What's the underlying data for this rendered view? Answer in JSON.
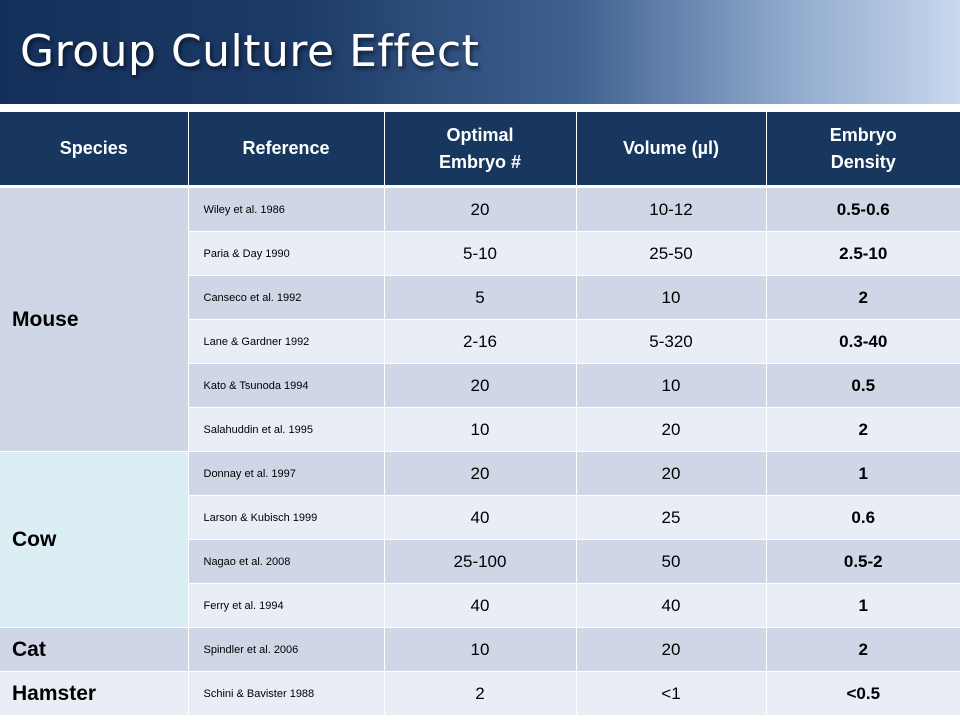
{
  "title": "Group Culture Effect",
  "table": {
    "headers": {
      "species": "Species",
      "reference": "Reference",
      "optimal_line1": "Optimal",
      "optimal_line2": "Embryo #",
      "volume": "Volume (µl)",
      "density_line1": "Embryo",
      "density_line2": "Density"
    },
    "groups": [
      {
        "species": "Mouse",
        "rows": [
          {
            "reference": "Wiley et al. 1986",
            "optimal": "20",
            "volume": "10-12",
            "density": "0.5-0.6"
          },
          {
            "reference": "Paria & Day 1990",
            "optimal": "5-10",
            "volume": "25-50",
            "density": "2.5-10"
          },
          {
            "reference": "Canseco et al. 1992",
            "optimal": "5",
            "volume": "10",
            "density": "2"
          },
          {
            "reference": "Lane & Gardner 1992",
            "optimal": "2-16",
            "volume": "5-320",
            "density": "0.3-40"
          },
          {
            "reference": "Kato & Tsunoda 1994",
            "optimal": "20",
            "volume": "10",
            "density": "0.5"
          },
          {
            "reference": "Salahuddin et al. 1995",
            "optimal": "10",
            "volume": "20",
            "density": "2"
          }
        ]
      },
      {
        "species": "Cow",
        "rows": [
          {
            "reference": "Donnay et al. 1997",
            "optimal": "20",
            "volume": "20",
            "density": "1"
          },
          {
            "reference": "Larson & Kubisch 1999",
            "optimal": "40",
            "volume": "25",
            "density": "0.6"
          },
          {
            "reference": "Nagao et al. 2008",
            "optimal": "25-100",
            "volume": "50",
            "density": "0.5-2"
          },
          {
            "reference": "Ferry et al. 1994",
            "optimal": "40",
            "volume": "40",
            "density": "1"
          }
        ]
      },
      {
        "species": "Cat",
        "rows": [
          {
            "reference": "Spindler et al. 2006",
            "optimal": "10",
            "volume": "20",
            "density": "2"
          }
        ]
      },
      {
        "species": "Hamster",
        "rows": [
          {
            "reference": "Schini & Bavister 1988",
            "optimal": "2",
            "volume": "<1",
            "density": "<0.5"
          }
        ]
      }
    ]
  }
}
